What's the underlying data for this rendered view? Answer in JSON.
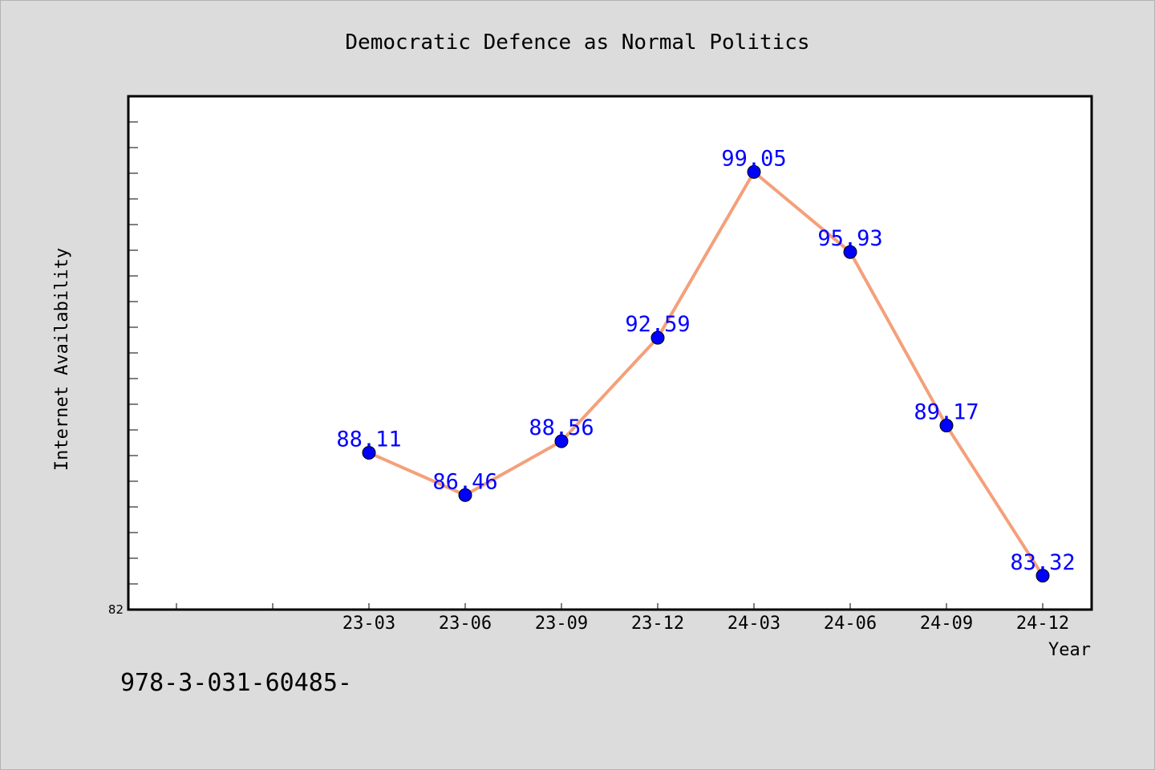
{
  "chart_data": {
    "type": "line",
    "title": "Democratic Defence as Normal Politics",
    "xlabel": "Year",
    "ylabel": "Internet Availability",
    "categories": [
      "23-03",
      "23-06",
      "23-09",
      "23-12",
      "24-03",
      "24-06",
      "24-09",
      "24-12"
    ],
    "series": [
      {
        "values": [
          88.11,
          86.46,
          88.56,
          92.59,
          99.05,
          95.93,
          89.17,
          83.32
        ],
        "color": "#f4a07a",
        "marker_color": "#0000ff"
      }
    ],
    "ylim": [
      82,
      102
    ],
    "ytick_labels": [
      "82"
    ],
    "grid": false,
    "legend": "none",
    "data_label_color": "#0000ff"
  },
  "footer": {
    "text": "978-3-031-60485-"
  },
  "colors": {
    "background": "#dcdcdc",
    "plot_background": "#ffffff",
    "line": "#f4a07a",
    "marker": "#0000ff"
  }
}
